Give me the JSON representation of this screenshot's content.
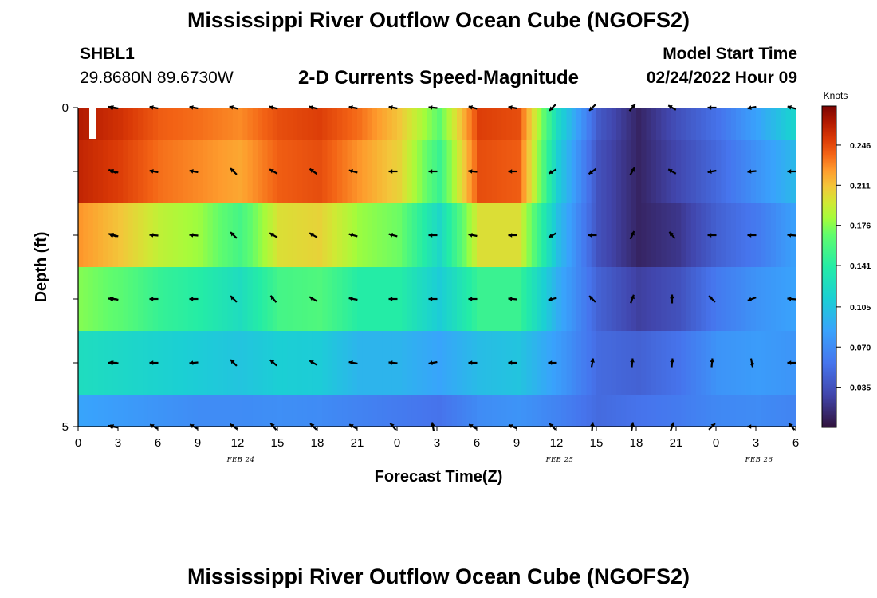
{
  "page": {
    "title": "Mississippi River Outflow Ocean Cube (NGOFS2)",
    "title_repeat": "Mississippi River Outflow Ocean Cube (NGOFS2)",
    "station_name": "SHBL1",
    "station_coords": "29.8680N  89.6730W",
    "subtitle": "2-D Currents Speed-Magnitude",
    "model_label": "Model Start Time",
    "model_time": "02/24/2022 Hour 09"
  },
  "chart_data": {
    "type": "heatmap",
    "title": "2-D Currents Speed-Magnitude",
    "xlabel": "Forecast Time(Z)",
    "ylabel": "Depth (ft)",
    "colorbar_label": "Knots",
    "x_tick_labels": [
      "0",
      "3",
      "6",
      "9",
      "12",
      "15",
      "18",
      "21",
      "0",
      "3",
      "6",
      "9",
      "12",
      "15",
      "18",
      "21",
      "0",
      "3",
      "6"
    ],
    "date_labels": [
      {
        "text": "FEB 24",
        "at_hour": 12
      },
      {
        "text": "FEB 25",
        "at_hour": 36
      },
      {
        "text": "FEB 26",
        "at_hour": 51
      }
    ],
    "y_tick_labels": [
      "0",
      "5"
    ],
    "xlim": [
      0,
      54
    ],
    "ylim": [
      0,
      5
    ],
    "colorbar_ticks": [
      "0.035",
      "0.070",
      "0.105",
      "0.141",
      "0.176",
      "0.211",
      "0.246"
    ],
    "colorbar_range": [
      0.0,
      0.28
    ],
    "layers_depth_ft": [
      0,
      1,
      2,
      3,
      4,
      5
    ],
    "x_hours": [
      0,
      3,
      6,
      9,
      12,
      15,
      18,
      21,
      24,
      27,
      30,
      33,
      36,
      39,
      42,
      45,
      48,
      51,
      54
    ],
    "speed_knots": [
      [
        0.265,
        0.255,
        0.24,
        0.235,
        0.228,
        0.245,
        0.25,
        0.235,
        0.21,
        0.165,
        0.25,
        0.245,
        0.12,
        0.04,
        0.01,
        0.035,
        0.055,
        0.085,
        0.12
      ],
      [
        0.26,
        0.25,
        0.235,
        0.228,
        0.22,
        0.24,
        0.245,
        0.225,
        0.205,
        0.15,
        0.245,
        0.24,
        0.11,
        0.035,
        0.01,
        0.03,
        0.05,
        0.075,
        0.1
      ],
      [
        0.225,
        0.21,
        0.19,
        0.18,
        0.155,
        0.2,
        0.205,
        0.18,
        0.17,
        0.12,
        0.2,
        0.2,
        0.1,
        0.035,
        0.01,
        0.02,
        0.045,
        0.06,
        0.085
      ],
      [
        0.175,
        0.165,
        0.148,
        0.14,
        0.125,
        0.155,
        0.16,
        0.14,
        0.14,
        0.11,
        0.15,
        0.15,
        0.09,
        0.045,
        0.025,
        0.035,
        0.06,
        0.075,
        0.085
      ],
      [
        0.125,
        0.12,
        0.115,
        0.11,
        0.105,
        0.112,
        0.11,
        0.095,
        0.095,
        0.085,
        0.1,
        0.105,
        0.08,
        0.05,
        0.045,
        0.055,
        0.075,
        0.08,
        0.075
      ],
      [
        0.085,
        0.08,
        0.075,
        0.07,
        0.07,
        0.072,
        0.07,
        0.065,
        0.06,
        0.055,
        0.07,
        0.075,
        0.065,
        0.05,
        0.055,
        0.06,
        0.068,
        0.07,
        0.065
      ]
    ],
    "direction_deg": [
      [
        280,
        280,
        280,
        280,
        285,
        285,
        285,
        280,
        280,
        275,
        285,
        280,
        225,
        225,
        40,
        300,
        270,
        260,
        285
      ],
      [
        295,
        285,
        280,
        280,
        315,
        300,
        305,
        285,
        270,
        270,
        275,
        270,
        240,
        235,
        30,
        300,
        260,
        265,
        270
      ],
      [
        290,
        285,
        275,
        275,
        315,
        300,
        300,
        285,
        285,
        270,
        280,
        270,
        240,
        270,
        25,
        320,
        270,
        270,
        275
      ],
      [
        275,
        280,
        270,
        270,
        315,
        320,
        300,
        280,
        270,
        270,
        270,
        275,
        255,
        315,
        20,
        0,
        315,
        250,
        275
      ],
      [
        270,
        275,
        270,
        265,
        315,
        310,
        300,
        280,
        275,
        260,
        270,
        270,
        270,
        10,
        5,
        5,
        5,
        170,
        270
      ],
      [
        280,
        285,
        300,
        300,
        305,
        320,
        315,
        300,
        320,
        350,
        300,
        295,
        315,
        5,
        10,
        20,
        45,
        270,
        320
      ]
    ]
  }
}
